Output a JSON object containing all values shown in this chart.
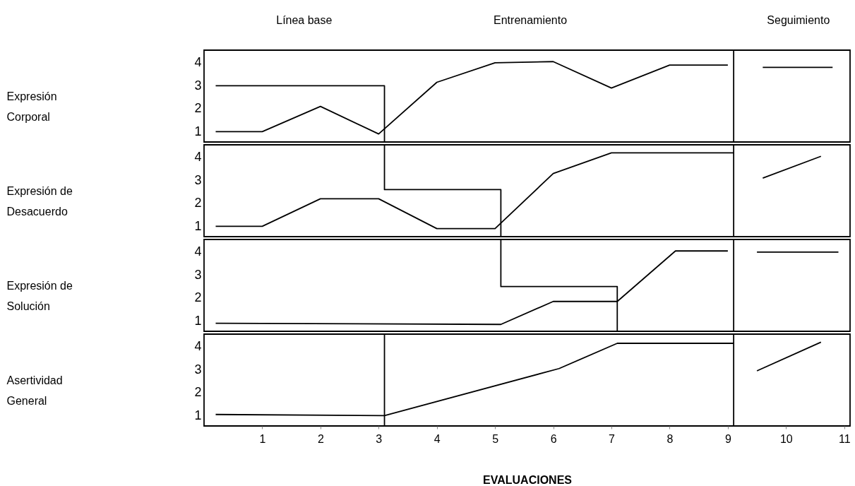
{
  "chart_data": [
    {
      "type": "line",
      "ylabel": "Expresión Corporal",
      "xlim": [
        0,
        11.1
      ],
      "ylim": [
        0.55,
        4.55
      ],
      "yticks": [
        1,
        2,
        3,
        4
      ],
      "tick_labels": "y",
      "grid": false,
      "annotations": [
        "Línea base",
        "Entrenamiento",
        "Seguimiento"
      ],
      "ref_lines": [
        {
          "axis": "x",
          "value": 9.1,
          "color": "#000000"
        }
      ],
      "series": [
        {
          "color": "#000000",
          "x": [
            0.2,
            1,
            2,
            3,
            4,
            5,
            6,
            7,
            8,
            9
          ],
          "values": [
            1,
            1,
            2.1,
            0.9,
            3.15,
            4,
            4.05,
            2.9,
            3.9,
            3.9
          ]
        },
        {
          "color": "#000000",
          "x": [
            9.6,
            10.8
          ],
          "values": [
            3.8,
            3.8
          ]
        },
        {
          "color": "#000000",
          "x": [
            0.2,
            3.1,
            3.1
          ],
          "values": [
            3,
            3,
            0.55
          ]
        }
      ]
    },
    {
      "type": "line",
      "ylabel": "Expresión de Desacuerdo",
      "xlim": [
        0,
        11.1
      ],
      "ylim": [
        0.55,
        4.55
      ],
      "yticks": [
        1,
        2,
        3,
        4
      ],
      "tick_labels": "y",
      "grid": false,
      "ref_lines": [
        {
          "axis": "x",
          "value": 9.1,
          "color": "#000000"
        }
      ],
      "series": [
        {
          "color": "#000000",
          "x": [
            0.2,
            1,
            2,
            3,
            4,
            5,
            6,
            7,
            8,
            9.1
          ],
          "values": [
            1,
            1,
            2.2,
            2.2,
            0.9,
            0.9,
            3.3,
            4.2,
            4.2,
            4.2
          ]
        },
        {
          "color": "#000000",
          "x": [
            9.6,
            10.6
          ],
          "values": [
            3.1,
            4.05
          ]
        },
        {
          "color": "#000000",
          "x": [
            3.1,
            3.1,
            5.1,
            5.1
          ],
          "values": [
            4.55,
            2.6,
            2.6,
            0.55
          ]
        }
      ]
    },
    {
      "type": "line",
      "ylabel": "Expresión de Solución",
      "xlim": [
        0,
        11.1
      ],
      "ylim": [
        0.55,
        4.55
      ],
      "yticks": [
        1,
        2,
        3,
        4
      ],
      "tick_labels": "y",
      "grid": false,
      "ref_lines": [
        {
          "axis": "x",
          "value": 9.1,
          "color": "#000000"
        }
      ],
      "series": [
        {
          "color": "#000000",
          "x": [
            0.2,
            5.1,
            6,
            7.1,
            8.1,
            9
          ],
          "values": [
            0.9,
            0.85,
            1.85,
            1.85,
            4.05,
            4.05
          ]
        },
        {
          "color": "#000000",
          "x": [
            9.5,
            10.9
          ],
          "values": [
            4,
            4
          ]
        },
        {
          "color": "#000000",
          "x": [
            5.1,
            5.1,
            7.1,
            7.1
          ],
          "values": [
            4.55,
            2.5,
            2.5,
            0.55
          ]
        }
      ]
    },
    {
      "type": "line",
      "ylabel": "Asertividad General",
      "xlabel": "EVALUACIONES",
      "xlim": [
        0,
        11.1
      ],
      "ylim": [
        0.55,
        4.55
      ],
      "xticks": [
        1,
        2,
        3,
        4,
        5,
        6,
        7,
        8,
        9,
        10,
        11
      ],
      "yticks": [
        1,
        2,
        3,
        4
      ],
      "grid": false,
      "ref_lines": [
        {
          "axis": "x",
          "value": 9.1,
          "color": "#000000"
        },
        {
          "axis": "x",
          "value": 3.1,
          "color": "#000000"
        }
      ],
      "series": [
        {
          "color": "#000000",
          "x": [
            0.2,
            3.1,
            6.1,
            7.1,
            9.1
          ],
          "values": [
            1.05,
            1,
            3.05,
            4.15,
            4.15
          ]
        },
        {
          "color": "#000000",
          "x": [
            9.5,
            10.6
          ],
          "values": [
            2.95,
            4.2
          ]
        }
      ]
    }
  ]
}
